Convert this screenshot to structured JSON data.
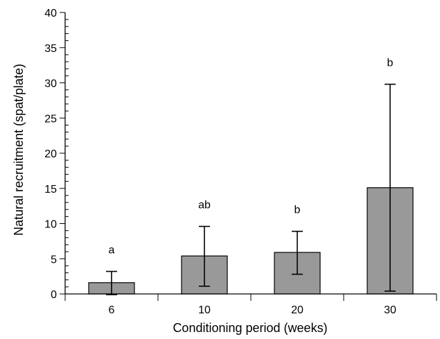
{
  "chart_data": {
    "type": "bar",
    "title": "",
    "xlabel": "Conditioning period (weeks)",
    "ylabel": "Natural recruitment (spat/plate)",
    "categories": [
      "6",
      "10",
      "20",
      "30"
    ],
    "values": [
      1.6,
      5.4,
      5.9,
      15.1
    ],
    "error_low": [
      -0.1,
      1.1,
      2.8,
      0.4
    ],
    "error_high": [
      3.2,
      9.6,
      8.9,
      29.8
    ],
    "significance_labels": [
      "a",
      "ab",
      "b",
      "b"
    ],
    "ylim": [
      0,
      40
    ],
    "yticks": [
      "0",
      "5",
      "10",
      "15",
      "20",
      "25",
      "30",
      "35",
      "40"
    ],
    "ytick_values": [
      0,
      5,
      10,
      15,
      20,
      25,
      30,
      35,
      40
    ],
    "y_minor_step": 1,
    "grid": false,
    "bar_color": "#999999",
    "edge_color": "#000000"
  }
}
